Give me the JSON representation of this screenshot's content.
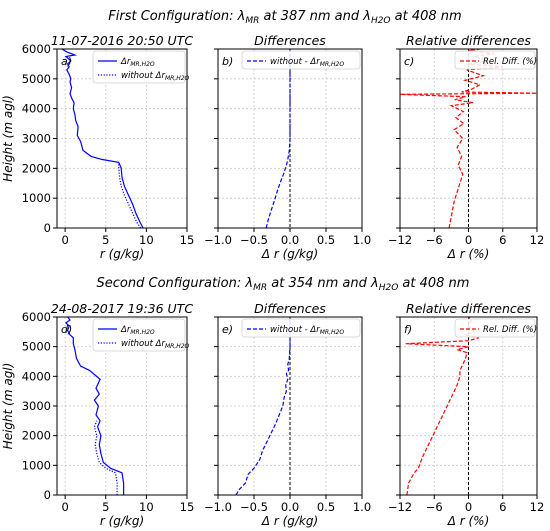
{
  "figure": {
    "config1_title": "First Configuration:  λ",
    "config1_title_mr": "MR",
    "config1_title_mid": " at 387 nm and λ",
    "config1_title_h2o": "H2O",
    "config1_title_end": " at 408 nm",
    "config2_title": "Second Configuration:  λ",
    "config2_title_mr": "MR",
    "config2_title_mid": " at 354 nm and λ",
    "config2_title_h2o": "H2O",
    "config2_title_end": " at 408 nm"
  },
  "chart_data": [
    {
      "type": "line",
      "panel": "a)",
      "title": "11-07-2016 20:50 UTC",
      "xlabel": "r (g/kg)",
      "ylabel": "Height (m agl)",
      "xlim": [
        -1,
        15
      ],
      "ylim": [
        0,
        6000
      ],
      "xticks": [
        "0",
        "5",
        "10",
        "15"
      ],
      "yticks": [
        "0",
        "1000",
        "2000",
        "3000",
        "4000",
        "5000",
        "6000"
      ],
      "grid": true,
      "legend": "top-right",
      "series": [
        {
          "name": "ΔrMR,H2O",
          "color": "#0000ff",
          "style": "solid",
          "x": [
            9.6,
            9.2,
            8.7,
            8.3,
            7.8,
            7.3,
            7.0,
            6.9,
            6.6,
            4.5,
            3.2,
            2.2,
            1.9,
            1.5,
            1.6,
            1.3,
            1.2,
            1.0,
            1.1,
            0.9,
            0.6,
            0.8,
            0.6,
            0.7,
            0.5,
            0.2,
            0.5,
            0.3,
            0.7,
            0.3,
            0.1,
            1.2,
            0.2,
            -0.4
          ],
          "y": [
            0,
            200,
            500,
            800,
            1100,
            1400,
            1700,
            2000,
            2200,
            2300,
            2400,
            2600,
            2900,
            3100,
            3400,
            3600,
            3800,
            4000,
            4200,
            4300,
            4500,
            4700,
            4900,
            5000,
            5150,
            5300,
            5400,
            5500,
            5600,
            5700,
            5750,
            5800,
            5900,
            6000
          ]
        },
        {
          "name": "without ΔrMR,H2O",
          "color": "#0000ff",
          "style": "dotted",
          "x": [
            9.3,
            8.8,
            8.3,
            7.8,
            7.3,
            6.9,
            6.7,
            6.6,
            6.6
          ],
          "y": [
            0,
            200,
            500,
            800,
            1100,
            1400,
            1700,
            2000,
            2200
          ]
        }
      ]
    },
    {
      "type": "line",
      "panel": "b)",
      "title": "Differences",
      "xlabel": "Δ r (g/kg)",
      "ylabel": "",
      "xlim": [
        -1.0,
        1.0
      ],
      "ylim": [
        0,
        6000
      ],
      "xticks": [
        "-1.0",
        "-0.5",
        "0.0",
        "0.5",
        "1.0"
      ],
      "grid": true,
      "legend": "top-right",
      "series": [
        {
          "name": "without - ΔrMR,H2O",
          "color": "#0000ff",
          "style": "dashed",
          "x": [
            -0.33,
            -0.3,
            -0.26,
            -0.22,
            -0.18,
            -0.14,
            -0.09,
            -0.05,
            -0.03,
            -0.01,
            0.0,
            0.0,
            0.0
          ],
          "y": [
            0,
            300,
            600,
            900,
            1200,
            1500,
            1800,
            2100,
            2300,
            2600,
            3000,
            4500,
            6000
          ]
        }
      ]
    },
    {
      "type": "line",
      "panel": "c)",
      "title": "Relative differences",
      "xlabel": "Δ r (%)",
      "ylabel": "",
      "xlim": [
        -12,
        12
      ],
      "ylim": [
        0,
        6000
      ],
      "xticks": [
        "-12",
        "-6",
        "0",
        "6",
        "12"
      ],
      "grid": true,
      "legend": "top-right",
      "series": [
        {
          "name": "Rel. Diff. (%)",
          "color": "#ff0000",
          "style": "dashed",
          "x": [
            -3.4,
            -3.1,
            -2.8,
            -2.5,
            -2.0,
            -1.5,
            -1.0,
            -1.8,
            -1.2,
            -2.0,
            -1.0,
            -2.5,
            -0.8,
            -2.2,
            -0.9,
            -3.0,
            0.8,
            -2.4,
            -0.5,
            -8.0,
            -12.0,
            12.0,
            -1.2,
            0.5,
            2.0,
            -0.6,
            2.6,
            -0.3,
            6.0,
            0.0,
            3.5,
            1.0,
            4.5,
            0.0,
            2.0
          ],
          "y": [
            0,
            300,
            600,
            900,
            1200,
            1500,
            1800,
            2100,
            2400,
            2700,
            3000,
            3300,
            3500,
            3700,
            3900,
            4100,
            4200,
            4300,
            4400,
            4450,
            4480,
            4520,
            4560,
            4650,
            4800,
            4950,
            5100,
            5300,
            5400,
            5500,
            5600,
            5750,
            5850,
            5950,
            6000
          ]
        }
      ]
    },
    {
      "type": "line",
      "panel": "d)",
      "title": "24-08-2017 19:36 UTC",
      "xlabel": "r (g/kg)",
      "ylabel": "Height (m agl)",
      "xlim": [
        -1,
        15
      ],
      "ylim": [
        0,
        6000
      ],
      "xticks": [
        "0",
        "5",
        "10",
        "15"
      ],
      "yticks": [
        "0",
        "1000",
        "2000",
        "3000",
        "4000",
        "5000",
        "6000"
      ],
      "grid": true,
      "legend": "top-right",
      "series": [
        {
          "name": "ΔrMR,H2O",
          "color": "#0000ff",
          "style": "solid",
          "x": [
            7.2,
            7.2,
            7.0,
            5.6,
            4.7,
            4.4,
            4.2,
            4.4,
            4.0,
            4.3,
            3.8,
            4.1,
            3.6,
            4.2,
            3.8,
            4.3,
            3.0,
            1.9,
            1.4,
            1.2,
            1.0,
            1.0,
            0.6,
            0.3,
            0.5,
            0.1,
            0.6,
            0.3,
            0.7
          ],
          "y": [
            0,
            400,
            750,
            900,
            1100,
            1400,
            1700,
            2000,
            2300,
            2500,
            2700,
            3000,
            3200,
            3400,
            3600,
            3900,
            4200,
            4350,
            4600,
            4900,
            5100,
            5300,
            5400,
            5550,
            5700,
            5800,
            5900,
            6000,
            6050
          ]
        },
        {
          "name": "without ΔrMR,H2O",
          "color": "#0000ff",
          "style": "dotted",
          "x": [
            6.4,
            6.4,
            6.2,
            5.0,
            4.2,
            3.9,
            3.7,
            3.9,
            3.6,
            3.9
          ],
          "y": [
            0,
            400,
            750,
            900,
            1100,
            1400,
            1700,
            2000,
            2300,
            2500
          ]
        }
      ]
    },
    {
      "type": "line",
      "panel": "e)",
      "title": "Differences",
      "xlabel": "Δ r (g/kg)",
      "ylabel": "",
      "xlim": [
        -1.0,
        1.0
      ],
      "ylim": [
        0,
        6000
      ],
      "xticks": [
        "-1.0",
        "-0.5",
        "0.0",
        "0.5",
        "1.0"
      ],
      "grid": true,
      "legend": "top-right",
      "series": [
        {
          "name": "without - ΔrMR,H2O",
          "color": "#0000ff",
          "style": "dashed",
          "x": [
            -0.75,
            -0.7,
            -0.62,
            -0.58,
            -0.5,
            -0.42,
            -0.38,
            -0.32,
            -0.26,
            -0.2,
            -0.15,
            -0.1,
            -0.08,
            -0.05,
            -0.06,
            -0.03,
            -0.05,
            -0.02,
            -0.03,
            -0.01,
            0.0,
            0.0,
            0.0
          ],
          "y": [
            0,
            200,
            400,
            700,
            900,
            1200,
            1500,
            1800,
            2100,
            2400,
            2700,
            3000,
            3300,
            3500,
            3700,
            3900,
            4100,
            4200,
            4400,
            4600,
            5000,
            5500,
            6000
          ]
        }
      ]
    },
    {
      "type": "line",
      "panel": "f)",
      "title": "Relative differences",
      "xlabel": "Δ r (%)",
      "ylabel": "",
      "xlim": [
        -12,
        12
      ],
      "ylim": [
        0,
        6000
      ],
      "xticks": [
        "-12",
        "-6",
        "0",
        "6",
        "12"
      ],
      "grid": true,
      "legend": "top-right",
      "series": [
        {
          "name": "Rel. Diff. (%)",
          "color": "#ff0000",
          "style": "dashed",
          "x": [
            -10.8,
            -10.5,
            -9.5,
            -8.8,
            -8.0,
            -7.0,
            -6.0,
            -5.0,
            -4.0,
            -3.0,
            -2.0,
            -1.5,
            -1.5,
            -1.0,
            -0.5,
            -0.3,
            -2.0,
            0.0,
            -11.0,
            0.0,
            1.8,
            -0.5,
            1.0,
            0.0,
            0.5,
            0.0
          ],
          "y": [
            0,
            400,
            750,
            900,
            1300,
            1700,
            2100,
            2500,
            2900,
            3300,
            3700,
            4000,
            4200,
            4400,
            4600,
            4800,
            4900,
            5000,
            5100,
            5200,
            5300,
            5400,
            5500,
            5700,
            5900,
            6000
          ]
        }
      ]
    }
  ]
}
